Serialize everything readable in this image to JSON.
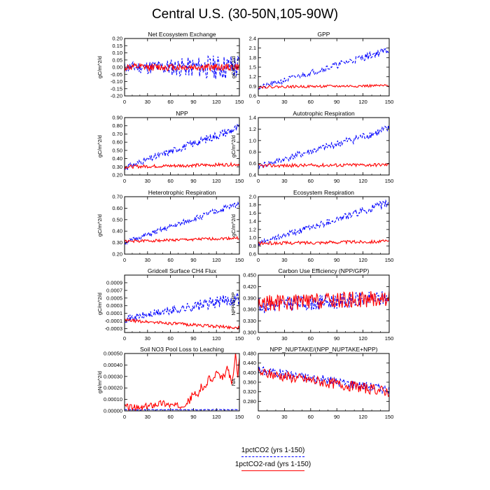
{
  "title": "Central U.S. (30-50N,105-90W)",
  "colors": {
    "series1": "#0000ff",
    "series2": "#ff0000"
  },
  "legend": [
    {
      "label": "1pctCO2 (yrs 1-150)",
      "style": "dashed",
      "color": "#0000ff"
    },
    {
      "label": "1pctCO2-rad (yrs 1-150)",
      "style": "solid",
      "color": "#ff0000"
    }
  ],
  "chart_data": [
    {
      "type": "line",
      "title": "Net Ecosystem Exchange",
      "ylabel": "gC/m^2/d",
      "xlim": [
        0,
        150
      ],
      "ylim": [
        -0.2,
        0.2
      ],
      "xticks": [
        "0",
        "30",
        "60",
        "90",
        "120",
        "150"
      ],
      "yticks": [
        "-0.20",
        "-0.15",
        "-0.10",
        "-0.05",
        "0.00",
        "0.05",
        "0.10",
        "0.15",
        "0.20"
      ],
      "series": [
        {
          "name": "1pctCO2 (yrs 1-150)",
          "start": 0.0,
          "end": 0.0,
          "noise": 0.035,
          "growth": 1.8,
          "seed": 11
        },
        {
          "name": "1pctCO2-rad (yrs 1-150)",
          "start": 0.0,
          "end": 0.0,
          "noise": 0.025,
          "growth": 0,
          "seed": 12
        }
      ]
    },
    {
      "type": "line",
      "title": "GPP",
      "ylabel": "gC/m^2/d",
      "xlim": [
        0,
        150
      ],
      "ylim": [
        0.6,
        2.4
      ],
      "xticks": [
        "0",
        "30",
        "60",
        "90",
        "120",
        "150"
      ],
      "yticks": [
        "0.6",
        "0.9",
        "1.2",
        "1.5",
        "1.8",
        "2.1",
        "2.4"
      ],
      "series": [
        {
          "name": "1pctCO2 (yrs 1-150)",
          "start": 0.85,
          "end": 2.05,
          "noise": 0.08,
          "growth": 0.6,
          "seed": 21
        },
        {
          "name": "1pctCO2-rad (yrs 1-150)",
          "start": 0.88,
          "end": 0.92,
          "noise": 0.04,
          "growth": 0,
          "seed": 22
        }
      ]
    },
    {
      "type": "line",
      "title": "NPP",
      "ylabel": "gC/m^2/d",
      "xlim": [
        0,
        150
      ],
      "ylim": [
        0.2,
        0.9
      ],
      "xticks": [
        "0",
        "30",
        "60",
        "90",
        "120",
        "150"
      ],
      "yticks": [
        "0.20",
        "0.30",
        "0.40",
        "0.50",
        "0.60",
        "0.70",
        "0.80",
        "0.90"
      ],
      "series": [
        {
          "name": "1pctCO2 (yrs 1-150)",
          "start": 0.29,
          "end": 0.78,
          "noise": 0.035,
          "growth": 0.6,
          "seed": 31
        },
        {
          "name": "1pctCO2-rad (yrs 1-150)",
          "start": 0.3,
          "end": 0.33,
          "noise": 0.02,
          "growth": 0,
          "seed": 32
        }
      ]
    },
    {
      "type": "line",
      "title": "Autotrophic Respiration",
      "ylabel": "gC/m^2/d",
      "xlim": [
        0,
        150
      ],
      "ylim": [
        0.4,
        1.4
      ],
      "xticks": [
        "0",
        "30",
        "60",
        "90",
        "120",
        "150"
      ],
      "yticks": [
        "0.4",
        "0.6",
        "0.8",
        "1.0",
        "1.2",
        "1.4"
      ],
      "series": [
        {
          "name": "1pctCO2 (yrs 1-150)",
          "start": 0.55,
          "end": 1.2,
          "noise": 0.05,
          "growth": 0.6,
          "seed": 41
        },
        {
          "name": "1pctCO2-rad (yrs 1-150)",
          "start": 0.56,
          "end": 0.58,
          "noise": 0.03,
          "growth": 0,
          "seed": 42
        }
      ]
    },
    {
      "type": "line",
      "title": "Heterotrophic Respiration",
      "ylabel": "gC/m^2/d",
      "xlim": [
        0,
        150
      ],
      "ylim": [
        0.2,
        0.7
      ],
      "xticks": [
        "0",
        "30",
        "60",
        "90",
        "120",
        "150"
      ],
      "yticks": [
        "0.20",
        "0.30",
        "0.40",
        "0.50",
        "0.60",
        "0.70"
      ],
      "series": [
        {
          "name": "1pctCO2 (yrs 1-150)",
          "start": 0.3,
          "end": 0.64,
          "noise": 0.02,
          "growth": 0.5,
          "seed": 51
        },
        {
          "name": "1pctCO2-rad (yrs 1-150)",
          "start": 0.31,
          "end": 0.34,
          "noise": 0.012,
          "growth": 0,
          "seed": 52
        }
      ]
    },
    {
      "type": "line",
      "title": "Ecosystem Respiration",
      "ylabel": "gC/m^2/d",
      "xlim": [
        0,
        150
      ],
      "ylim": [
        0.6,
        2.0
      ],
      "xticks": [
        "0",
        "30",
        "60",
        "90",
        "120",
        "150"
      ],
      "yticks": [
        "0.6",
        "0.8",
        "1.0",
        "1.2",
        "1.4",
        "1.6",
        "1.8",
        "2.0"
      ],
      "series": [
        {
          "name": "1pctCO2 (yrs 1-150)",
          "start": 0.85,
          "end": 1.85,
          "noise": 0.07,
          "growth": 0.5,
          "seed": 61
        },
        {
          "name": "1pctCO2-rad (yrs 1-150)",
          "start": 0.86,
          "end": 0.91,
          "noise": 0.04,
          "growth": 0,
          "seed": 62
        }
      ]
    },
    {
      "type": "line",
      "title": "Gridcell Surface CH4 Flux",
      "ylabel": "gC/m^2/d",
      "xlim": [
        0,
        150
      ],
      "ylim": [
        -0.0004,
        0.0011
      ],
      "xticks": [
        "0",
        "30",
        "60",
        "90",
        "120",
        "150"
      ],
      "yticks": [
        "-0.0003",
        "-0.0001",
        "0.0001",
        "0.0003",
        "0.0005",
        "0.0007",
        "0.0009"
      ],
      "series": [
        {
          "name": "1pctCO2 (yrs 1-150)",
          "start": -5e-05,
          "end": 0.0005,
          "noise": 9e-05,
          "growth": 0.9,
          "seed": 71
        },
        {
          "name": "1pctCO2-rad (yrs 1-150)",
          "start": -8e-05,
          "end": -0.00028,
          "noise": 4e-05,
          "growth": 0,
          "seed": 72
        }
      ]
    },
    {
      "type": "line",
      "title": "Carbon Use Efficiency (NPP/GPP)",
      "ylabel": "NPP/GPP",
      "xlim": [
        0,
        150
      ],
      "ylim": [
        0.3,
        0.45
      ],
      "xticks": [
        "0",
        "30",
        "60",
        "90",
        "120",
        "150"
      ],
      "yticks": [
        "0.300",
        "0.330",
        "0.360",
        "0.390",
        "0.420",
        "0.450"
      ],
      "series": [
        {
          "name": "1pctCO2 (yrs 1-150)",
          "start": 0.37,
          "end": 0.39,
          "noise": 0.02,
          "growth": 0,
          "seed": 81
        },
        {
          "name": "1pctCO2-rad (yrs 1-150)",
          "start": 0.375,
          "end": 0.39,
          "noise": 0.022,
          "growth": 0,
          "seed": 82
        }
      ]
    },
    {
      "type": "line",
      "title": "Soil NO3 Pool Loss to Leaching",
      "ylabel": "gN/m^2/d",
      "xlim": [
        0,
        150
      ],
      "ylim": [
        0.0,
        0.0005
      ],
      "xticks": [
        "0",
        "30",
        "60",
        "90",
        "120",
        "150"
      ],
      "yticks": [
        "0.00000",
        "0.00010",
        "0.00020",
        "0.00030",
        "0.00040",
        "0.00050"
      ],
      "series": [
        {
          "name": "1pctCO2 (yrs 1-150)",
          "start": 1e-05,
          "end": 1e-05,
          "noise": 3e-06,
          "growth": 0,
          "seed": 91
        },
        {
          "name": "1pctCO2-rad (yrs 1-150)",
          "points": [
            [
              0,
              4e-05
            ],
            [
              10,
              3e-05
            ],
            [
              20,
              2e-05
            ],
            [
              30,
              4e-05
            ],
            [
              40,
              6e-05
            ],
            [
              50,
              7e-05
            ],
            [
              60,
              5e-05
            ],
            [
              70,
              4e-05
            ],
            [
              80,
              7e-05
            ],
            [
              85,
              9e-05
            ],
            [
              90,
              0.00016
            ],
            [
              95,
              0.00012
            ],
            [
              100,
              0.00022
            ],
            [
              105,
              0.00018
            ],
            [
              110,
              0.0003
            ],
            [
              115,
              0.00025
            ],
            [
              120,
              0.00034
            ],
            [
              125,
              0.00028
            ],
            [
              130,
              0.0003
            ],
            [
              135,
              0.00038
            ],
            [
              140,
              0.00022
            ],
            [
              145,
              0.00048
            ],
            [
              148,
              0.00032
            ],
            [
              150,
              0.00046
            ]
          ],
          "noise": 3e-05,
          "seed": 92
        }
      ]
    },
    {
      "type": "line",
      "title": "NPP_NUPTAKE/(NPP_NUPTAKE+NPP)",
      "ylabel": "NA",
      "xlim": [
        0,
        150
      ],
      "ylim": [
        0.24,
        0.48
      ],
      "xticks": [
        "0",
        "30",
        "60",
        "90",
        "120",
        "150"
      ],
      "yticks": [
        "0.280",
        "0.320",
        "0.360",
        "0.400",
        "0.440",
        "0.480"
      ],
      "series": [
        {
          "name": "1pctCO2 (yrs 1-150)",
          "start": 0.41,
          "end": 0.33,
          "noise": 0.02,
          "growth": 0,
          "seed": 101
        },
        {
          "name": "1pctCO2-rad (yrs 1-150)",
          "start": 0.4,
          "end": 0.32,
          "noise": 0.022,
          "growth": 0,
          "seed": 102
        }
      ]
    }
  ]
}
